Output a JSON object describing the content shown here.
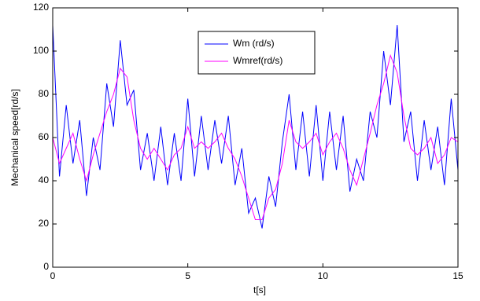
{
  "chart_data": {
    "type": "line",
    "xlabel": "t[s]",
    "ylabel": "Mechanical speed[rd/s]",
    "x": [
      0,
      0.25,
      0.5,
      0.75,
      1,
      1.25,
      1.5,
      1.75,
      2,
      2.25,
      2.5,
      2.75,
      3,
      3.25,
      3.5,
      3.75,
      4,
      4.25,
      4.5,
      4.75,
      5,
      5.25,
      5.5,
      5.75,
      6,
      6.25,
      6.5,
      6.75,
      7,
      7.25,
      7.5,
      7.75,
      8,
      8.25,
      8.5,
      8.75,
      9,
      9.25,
      9.5,
      9.75,
      10,
      10.25,
      10.5,
      10.75,
      11,
      11.25,
      11.5,
      11.75,
      12,
      12.25,
      12.5,
      12.75,
      13,
      13.25,
      13.5,
      13.75,
      14,
      14.25,
      14.5,
      14.75,
      15
    ],
    "series": [
      {
        "name": "Wm  (rd/s)",
        "color": "#0000ff",
        "values": [
          112,
          42,
          75,
          48,
          68,
          33,
          60,
          45,
          85,
          65,
          105,
          75,
          82,
          45,
          62,
          40,
          65,
          38,
          62,
          40,
          78,
          42,
          70,
          45,
          68,
          48,
          70,
          38,
          55,
          25,
          32,
          18,
          42,
          28,
          58,
          80,
          45,
          72,
          42,
          75,
          40,
          72,
          45,
          70,
          35,
          50,
          40,
          72,
          60,
          100,
          75,
          112,
          58,
          72,
          40,
          68,
          45,
          65,
          38,
          78,
          45
        ]
      },
      {
        "name": "Wmref(rd/s)",
        "color": "#ff00ff",
        "values": [
          60,
          48,
          55,
          62,
          50,
          40,
          52,
          62,
          72,
          80,
          92,
          88,
          68,
          55,
          50,
          55,
          50,
          45,
          52,
          55,
          65,
          55,
          58,
          55,
          58,
          62,
          55,
          50,
          42,
          32,
          22,
          22,
          32,
          36,
          48,
          68,
          58,
          55,
          58,
          62,
          52,
          58,
          62,
          55,
          45,
          38,
          50,
          62,
          75,
          85,
          98,
          90,
          70,
          55,
          52,
          55,
          60,
          48,
          52,
          60,
          58
        ]
      }
    ],
    "xlim": [
      0,
      15
    ],
    "xticks": [
      0,
      5,
      10,
      15
    ],
    "ylim": [
      0,
      120
    ],
    "yticks": [
      0,
      20,
      40,
      60,
      80,
      100,
      120
    ],
    "grid": false,
    "legend": "top-center"
  }
}
